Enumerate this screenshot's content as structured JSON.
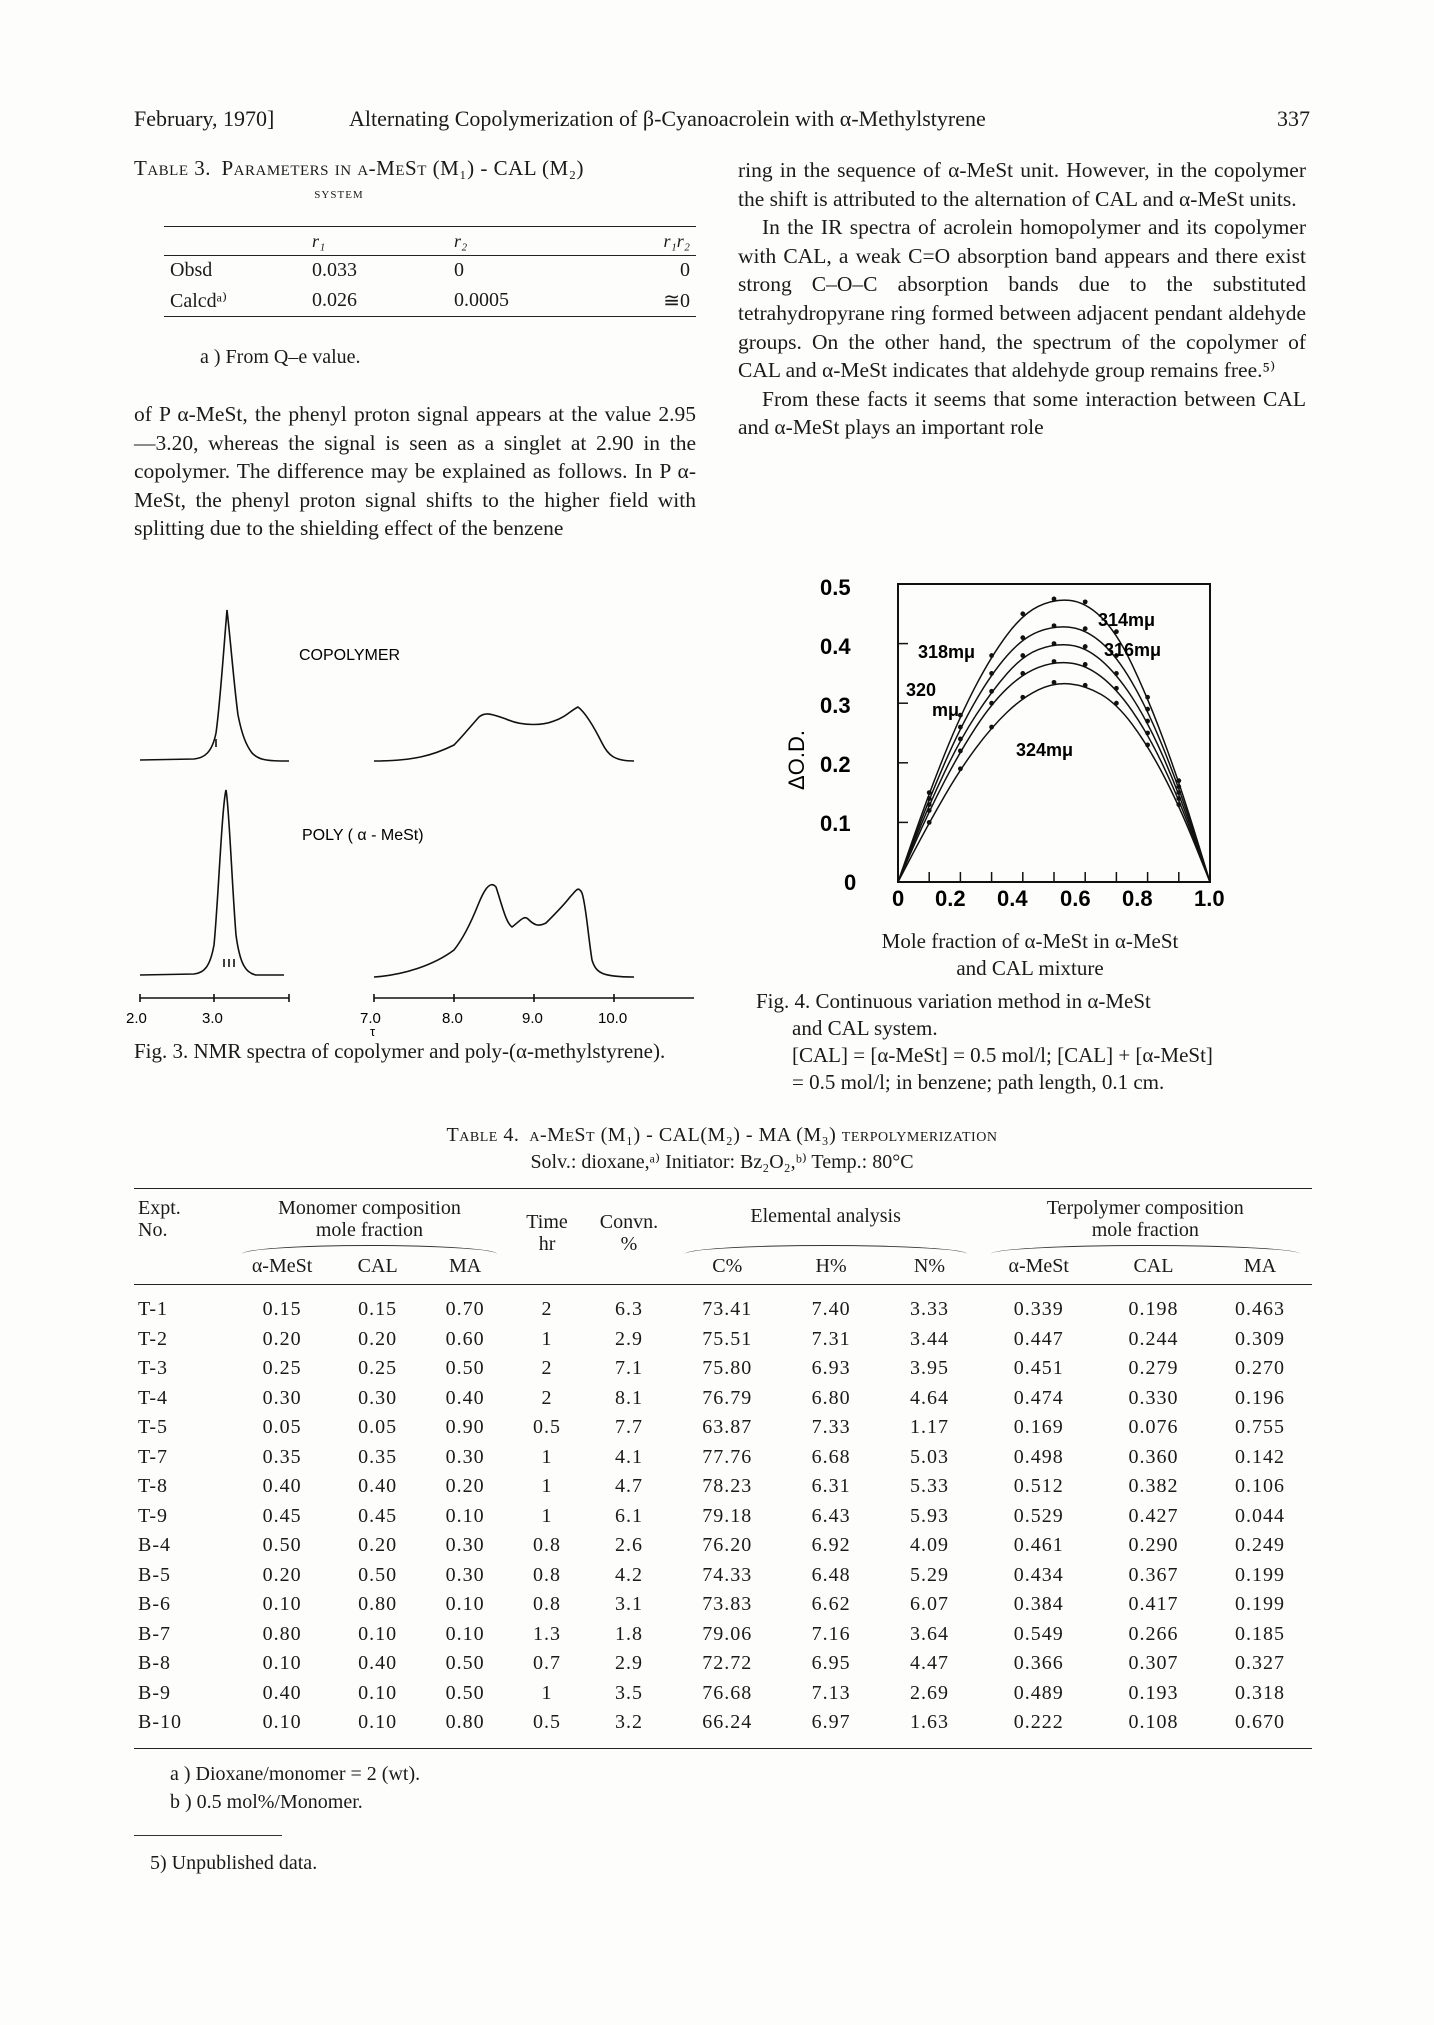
{
  "header": {
    "date": "February, 1970]",
    "title": "Alternating Copolymerization of β-Cyanoacrolein with α-Methylstyrene",
    "page": "337"
  },
  "table3": {
    "caption_label": "Table 3.",
    "caption_text": "Parameters in α-MeSt (M₁) - CAL (M₂)",
    "caption_sub": "system",
    "columns": [
      "",
      "r₁",
      "r₂",
      "r₁r₂"
    ],
    "rows": [
      [
        "Obsd",
        "0.033",
        "0",
        "0"
      ],
      [
        "Calcdᵃ⁾",
        "0.026",
        "0.0005",
        "≅0"
      ]
    ],
    "note": "a )  From Q–e value."
  },
  "left_paragraph": "of P α-MeSt, the phenyl proton signal appears at the value 2.95—3.20, whereas the signal is seen as a singlet at 2.90 in the copolymer. The difference may be explained as follows. In P α-MeSt, the phenyl proton signal shifts to the higher field with splitting due to the shielding effect of the benzene",
  "right_paragraphs": [
    "ring in the sequence of α-MeSt unit. However, in the copolymer the shift is attributed to the alternation of CAL and α-MeSt units.",
    "In the IR spectra of acrolein homopolymer and its copolymer with CAL, a weak C=O absorption band appears and there exist strong C–O–C absorption bands due to the substituted tetrahydropyrane ring formed between adjacent pendant aldehyde groups. On the other hand, the spectrum of the copolymer of CAL and α-MeSt indicates that aldehyde group remains free.⁵⁾",
    "From these facts it seems that some interaction between CAL and α-MeSt plays an important role"
  ],
  "fig3": {
    "label_copolymer": "COPOLYMER",
    "label_poly": "POLY ( α - MeSt)",
    "ticks": [
      "2.0",
      "3.0",
      "7.0",
      "8.0",
      "9.0",
      "10.0"
    ],
    "tau": "τ",
    "caption": "Fig. 3. NMR spectra of copolymer and poly-(α-methylstyrene)."
  },
  "fig4": {
    "yticks": [
      "0.5",
      "0.4",
      "0.3",
      "0.2",
      "0.1",
      "0"
    ],
    "xticks": [
      "0",
      "0.2",
      "0.4",
      "0.6",
      "0.8",
      "1.0"
    ],
    "ylabel": "ΔO.D.",
    "curve_labels": [
      "314mμ",
      "316mμ",
      "318mμ",
      "320",
      "mμ",
      "324mμ"
    ],
    "xlabel_line1": "Mole fraction of α-MeSt in α-MeSt",
    "xlabel_line2": "and CAL mixture",
    "caption_line1": "Fig. 4. Continuous variation method in α-MeSt",
    "caption_line2": "and CAL system.",
    "caption_line3": "[CAL] = [α-MeSt] = 0.5 mol/l; [CAL] + [α-MeSt]",
    "caption_line4": "= 0.5 mol/l; in benzene; path length, 0.1 cm."
  },
  "chart_data": {
    "type": "line",
    "xlim": [
      0,
      1.0
    ],
    "ylim": [
      0,
      0.5
    ],
    "x": [
      0,
      0.1,
      0.2,
      0.3,
      0.4,
      0.5,
      0.6,
      0.7,
      0.8,
      0.9,
      1.0
    ],
    "series": [
      {
        "name": "314mμ",
        "values": [
          0,
          0.15,
          0.28,
          0.38,
          0.45,
          0.475,
          0.47,
          0.42,
          0.31,
          0.17,
          0
        ]
      },
      {
        "name": "316mμ",
        "values": [
          0,
          0.14,
          0.26,
          0.35,
          0.41,
          0.43,
          0.425,
          0.38,
          0.29,
          0.16,
          0
        ]
      },
      {
        "name": "318mμ",
        "values": [
          0,
          0.13,
          0.24,
          0.32,
          0.38,
          0.4,
          0.395,
          0.35,
          0.27,
          0.15,
          0
        ]
      },
      {
        "name": "320 mμ",
        "values": [
          0,
          0.12,
          0.22,
          0.3,
          0.35,
          0.37,
          0.365,
          0.325,
          0.25,
          0.14,
          0
        ]
      },
      {
        "name": "324mμ",
        "values": [
          0,
          0.1,
          0.19,
          0.26,
          0.31,
          0.335,
          0.33,
          0.3,
          0.23,
          0.13,
          0
        ]
      }
    ],
    "ylabel": "ΔO.D.",
    "xlabel": "Mole fraction of α-MeSt in α-MeSt and CAL mixture"
  },
  "table4": {
    "caption_label": "Table 4.",
    "caption_text": "α-MeSt (M₁) - CAL(M₂) - MA (M₃) terpolymerization",
    "caption_sub": "Solv.: dioxane,ᵃ⁾ Initiator: Bz₂O₂,ᵇ⁾ Temp.: 80°C",
    "h_expt": "Expt.",
    "h_no": "No.",
    "h_monomer": "Monomer composition",
    "h_molefrac": "mole fraction",
    "h_time": "Time",
    "h_hr": "hr",
    "h_convn": "Convn.",
    "h_pct": "%",
    "h_elemental": "Elemental analysis",
    "h_terpolymer": "Terpolymer composition",
    "h_terpoly_molefrac": "mole fraction",
    "sub_mon": [
      "α-MeSt",
      "CAL",
      "MA"
    ],
    "sub_elem": [
      "C%",
      "H%",
      "N%"
    ],
    "sub_ter": [
      "α-MeSt",
      "CAL",
      "MA"
    ],
    "rows": [
      [
        "T-1",
        "0.15",
        "0.15",
        "0.70",
        "2",
        "6.3",
        "73.41",
        "7.40",
        "3.33",
        "0.339",
        "0.198",
        "0.463"
      ],
      [
        "T-2",
        "0.20",
        "0.20",
        "0.60",
        "1",
        "2.9",
        "75.51",
        "7.31",
        "3.44",
        "0.447",
        "0.244",
        "0.309"
      ],
      [
        "T-3",
        "0.25",
        "0.25",
        "0.50",
        "2",
        "7.1",
        "75.80",
        "6.93",
        "3.95",
        "0.451",
        "0.279",
        "0.270"
      ],
      [
        "T-4",
        "0.30",
        "0.30",
        "0.40",
        "2",
        "8.1",
        "76.79",
        "6.80",
        "4.64",
        "0.474",
        "0.330",
        "0.196"
      ],
      [
        "T-5",
        "0.05",
        "0.05",
        "0.90",
        "0.5",
        "7.7",
        "63.87",
        "7.33",
        "1.17",
        "0.169",
        "0.076",
        "0.755"
      ],
      [
        "T-7",
        "0.35",
        "0.35",
        "0.30",
        "1",
        "4.1",
        "77.76",
        "6.68",
        "5.03",
        "0.498",
        "0.360",
        "0.142"
      ],
      [
        "T-8",
        "0.40",
        "0.40",
        "0.20",
        "1",
        "4.7",
        "78.23",
        "6.31",
        "5.33",
        "0.512",
        "0.382",
        "0.106"
      ],
      [
        "T-9",
        "0.45",
        "0.45",
        "0.10",
        "1",
        "6.1",
        "79.18",
        "6.43",
        "5.93",
        "0.529",
        "0.427",
        "0.044"
      ],
      [
        "B-4",
        "0.50",
        "0.20",
        "0.30",
        "0.8",
        "2.6",
        "76.20",
        "6.92",
        "4.09",
        "0.461",
        "0.290",
        "0.249"
      ],
      [
        "B-5",
        "0.20",
        "0.50",
        "0.30",
        "0.8",
        "4.2",
        "74.33",
        "6.48",
        "5.29",
        "0.434",
        "0.367",
        "0.199"
      ],
      [
        "B-6",
        "0.10",
        "0.80",
        "0.10",
        "0.8",
        "3.1",
        "73.83",
        "6.62",
        "6.07",
        "0.384",
        "0.417",
        "0.199"
      ],
      [
        "B-7",
        "0.80",
        "0.10",
        "0.10",
        "1.3",
        "1.8",
        "79.06",
        "7.16",
        "3.64",
        "0.549",
        "0.266",
        "0.185"
      ],
      [
        "B-8",
        "0.10",
        "0.40",
        "0.50",
        "0.7",
        "2.9",
        "72.72",
        "6.95",
        "4.47",
        "0.366",
        "0.307",
        "0.327"
      ],
      [
        "B-9",
        "0.40",
        "0.10",
        "0.50",
        "1",
        "3.5",
        "76.68",
        "7.13",
        "2.69",
        "0.489",
        "0.193",
        "0.318"
      ],
      [
        "B-10",
        "0.10",
        "0.10",
        "0.80",
        "0.5",
        "3.2",
        "66.24",
        "6.97",
        "1.63",
        "0.222",
        "0.108",
        "0.670"
      ]
    ],
    "notes": [
      "a )  Dioxane/monomer = 2 (wt).",
      "b )  0.5 mol%/Monomer."
    ]
  },
  "footnote": "5)  Unpublished data."
}
